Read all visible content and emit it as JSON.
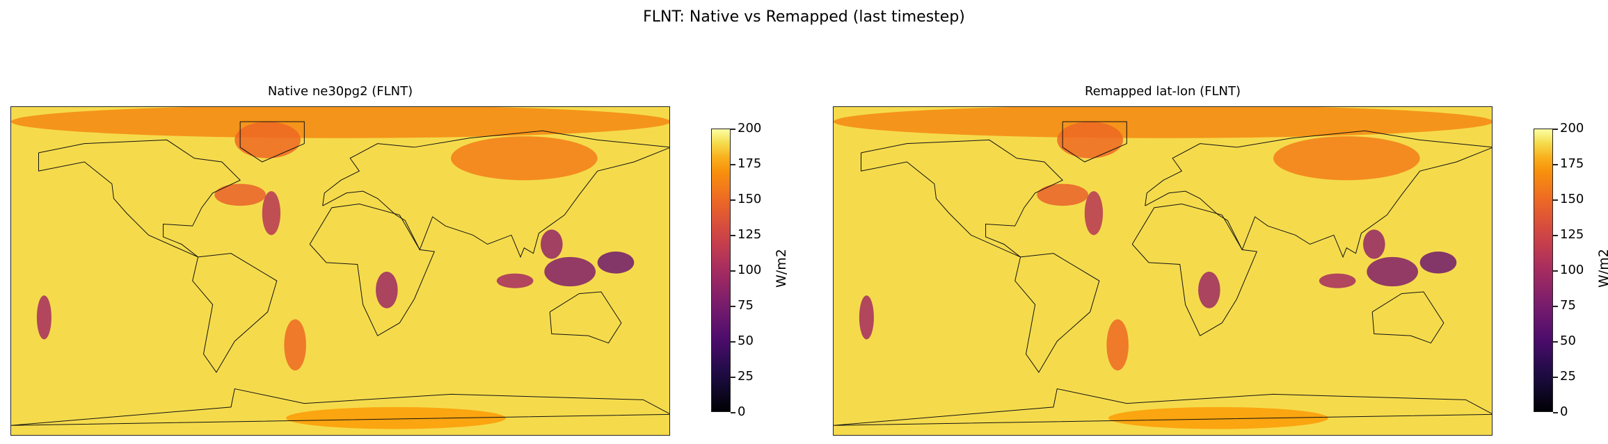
{
  "chart_data": [
    {
      "type": "heatmap",
      "suptitle": "FLNT: Native vs Remapped (last timestep)",
      "title": "Native ne30pg2 (FLNT)",
      "grid": "native",
      "projection": "equirectangular",
      "colormap": "inferno",
      "vlim": [
        0,
        200
      ],
      "colorbar": {
        "label": "W/m2",
        "ticks": [
          0,
          25,
          50,
          75,
          100,
          125,
          150,
          175,
          200
        ],
        "tick_labels": [
          "0",
          "25",
          "50",
          "75",
          "100",
          "125",
          "150",
          "175",
          "200"
        ]
      },
      "background_value": 190,
      "features_approx": [
        {
          "region": "Arctic band",
          "lon": 0,
          "lat": 82,
          "value": 165
        },
        {
          "region": "Greenland",
          "lon": -40,
          "lat": 72,
          "value": 150
        },
        {
          "region": "Siberia",
          "lon": 100,
          "lat": 62,
          "value": 160
        },
        {
          "region": "NW Atlantic storm",
          "lon": -55,
          "lat": 42,
          "value": 145
        },
        {
          "region": "Mid Atlantic band",
          "lon": -38,
          "lat": 32,
          "value": 110
        },
        {
          "region": "Maritime Continent",
          "lon": 125,
          "lat": 0,
          "value": 80
        },
        {
          "region": "West Pacific",
          "lon": 150,
          "lat": 5,
          "value": 70
        },
        {
          "region": "South China Sea",
          "lon": 115,
          "lat": 15,
          "value": 90
        },
        {
          "region": "Indian Ocean",
          "lon": 95,
          "lat": -5,
          "value": 100
        },
        {
          "region": "Central Africa",
          "lon": 25,
          "lat": -10,
          "value": 95
        },
        {
          "region": "South Pacific",
          "lon": -162,
          "lat": -25,
          "value": 100
        },
        {
          "region": "South Atlantic",
          "lon": -25,
          "lat": -40,
          "value": 150
        },
        {
          "region": "Antarctica",
          "lon": 30,
          "lat": -80,
          "value": 175
        }
      ]
    },
    {
      "type": "heatmap",
      "title": "Remapped lat-lon (FLNT)",
      "grid": "lat-lon",
      "projection": "equirectangular",
      "colormap": "inferno",
      "vlim": [
        0,
        200
      ],
      "colorbar": {
        "label": "W/m2",
        "ticks": [
          0,
          25,
          50,
          75,
          100,
          125,
          150,
          175,
          200
        ],
        "tick_labels": [
          "0",
          "25",
          "50",
          "75",
          "100",
          "125",
          "150",
          "175",
          "200"
        ]
      },
      "background_value": 190
    }
  ]
}
